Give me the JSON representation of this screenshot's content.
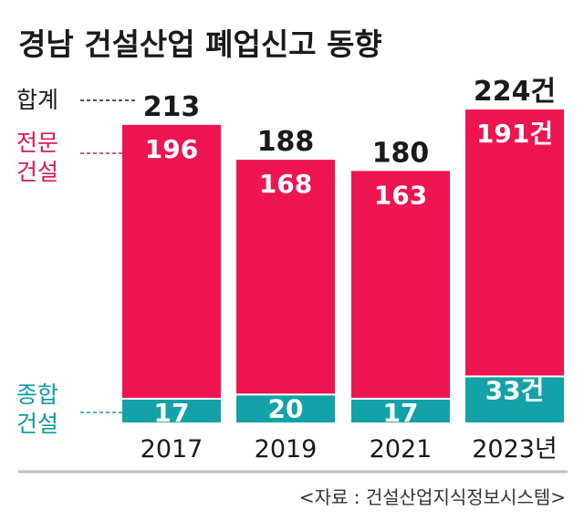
{
  "chart_data": {
    "type": "bar",
    "stacked": true,
    "title": "경남 건설산업 폐업신고 동향",
    "categories": [
      "2017",
      "2019",
      "2021",
      "2023년"
    ],
    "series": [
      {
        "name": "전문\n건설",
        "values": [
          196,
          168,
          163,
          191
        ],
        "labels": [
          "196",
          "168",
          "163",
          "191건"
        ]
      },
      {
        "name": "종합\n건설",
        "values": [
          17,
          20,
          17,
          33
        ],
        "labels": [
          "17",
          "20",
          "17",
          "33건"
        ]
      }
    ],
    "totals": {
      "name": "합계",
      "values": [
        213,
        188,
        180,
        224
      ],
      "labels": [
        "213",
        "188",
        "180",
        "224건"
      ]
    },
    "ylim": [
      0,
      224
    ],
    "grid": false,
    "legend_position": "left",
    "source": "<자료 : 건설산업지식정보시스템>"
  },
  "colors": {
    "professional": "#ee1450",
    "general": "#13a2a8",
    "total_text": "#1a1a1a",
    "professional_label": "#d91a4e",
    "general_label": "#119aa3",
    "baseline": "#bfbfbf"
  }
}
